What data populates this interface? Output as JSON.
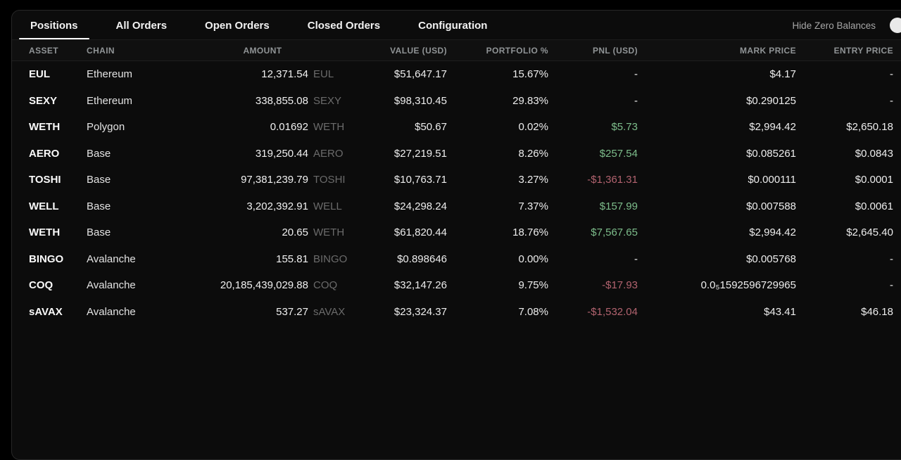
{
  "colors": {
    "positive": "#7dbd8b",
    "negative": "#b2636f",
    "tab_underline": "#ffffff",
    "panel_background": "#0c0c0c",
    "page_background": "#000000"
  },
  "tabs": {
    "items": [
      {
        "label": "Positions",
        "active": true
      },
      {
        "label": "All Orders",
        "active": false
      },
      {
        "label": "Open Orders",
        "active": false
      },
      {
        "label": "Closed Orders",
        "active": false
      },
      {
        "label": "Configuration",
        "active": false
      }
    ]
  },
  "controls": {
    "hide_zero_balances_label": "Hide Zero Balances"
  },
  "table": {
    "columns": [
      "ASSET",
      "CHAIN",
      "AMOUNT",
      "VALUE (USD)",
      "PORTFOLIO %",
      "PNL (USD)",
      "MARK PRICE",
      "ENTRY PRICE"
    ],
    "rows": [
      {
        "asset": "EUL",
        "chain": "Ethereum",
        "amount": "12,371.54",
        "symbol": "EUL",
        "value": "$51,647.17",
        "portfolio_pct": "15.67%",
        "pnl": "-",
        "pnl_color": "neutral",
        "mark_price": "$4.17",
        "entry_price": "-"
      },
      {
        "asset": "SEXY",
        "chain": "Ethereum",
        "amount": "338,855.08",
        "symbol": "SEXY",
        "value": "$98,310.45",
        "portfolio_pct": "29.83%",
        "pnl": "-",
        "pnl_color": "neutral",
        "mark_price": "$0.290125",
        "entry_price": "-"
      },
      {
        "asset": "WETH",
        "chain": "Polygon",
        "amount": "0.01692",
        "symbol": "WETH",
        "value": "$50.67",
        "portfolio_pct": "0.02%",
        "pnl": "$5.73",
        "pnl_color": "positive",
        "mark_price": "$2,994.42",
        "entry_price": "$2,650.18"
      },
      {
        "asset": "AERO",
        "chain": "Base",
        "amount": "319,250.44",
        "symbol": "AERO",
        "value": "$27,219.51",
        "portfolio_pct": "8.26%",
        "pnl": "$257.54",
        "pnl_color": "positive",
        "mark_price": "$0.085261",
        "entry_price": "$0.0843"
      },
      {
        "asset": "TOSHI",
        "chain": "Base",
        "amount": "97,381,239.79",
        "symbol": "TOSHI",
        "value": "$10,763.71",
        "portfolio_pct": "3.27%",
        "pnl": "-$1,361.31",
        "pnl_color": "negative",
        "mark_price": "$0.000111",
        "entry_price": "$0.0001"
      },
      {
        "asset": "WELL",
        "chain": "Base",
        "amount": "3,202,392.91",
        "symbol": "WELL",
        "value": "$24,298.24",
        "portfolio_pct": "7.37%",
        "pnl": "$157.99",
        "pnl_color": "positive",
        "mark_price": "$0.007588",
        "entry_price": "$0.0061"
      },
      {
        "asset": "WETH",
        "chain": "Base",
        "amount": "20.65",
        "symbol": "WETH",
        "value": "$61,820.44",
        "portfolio_pct": "18.76%",
        "pnl": "$7,567.65",
        "pnl_color": "positive",
        "mark_price": "$2,994.42",
        "entry_price": "$2,645.40"
      },
      {
        "asset": "BINGO",
        "chain": "Avalanche",
        "amount": "155.81",
        "symbol": "BINGO",
        "value": "$0.898646",
        "portfolio_pct": "0.00%",
        "pnl": "-",
        "pnl_color": "neutral",
        "mark_price": "$0.005768",
        "entry_price": "-"
      },
      {
        "asset": "COQ",
        "chain": "Avalanche",
        "amount": "20,185,439,029.88",
        "symbol": "COQ",
        "value": "$32,147.26",
        "portfolio_pct": "9.75%",
        "pnl": "-$17.93",
        "pnl_color": "negative",
        "mark_price": "0.0₅1592596729965",
        "entry_price": "-"
      },
      {
        "asset": "sAVAX",
        "chain": "Avalanche",
        "amount": "537.27",
        "symbol": "sAVAX",
        "value": "$23,324.37",
        "portfolio_pct": "7.08%",
        "pnl": "-$1,532.04",
        "pnl_color": "negative",
        "mark_price": "$43.41",
        "entry_price": "$46.18"
      }
    ]
  }
}
